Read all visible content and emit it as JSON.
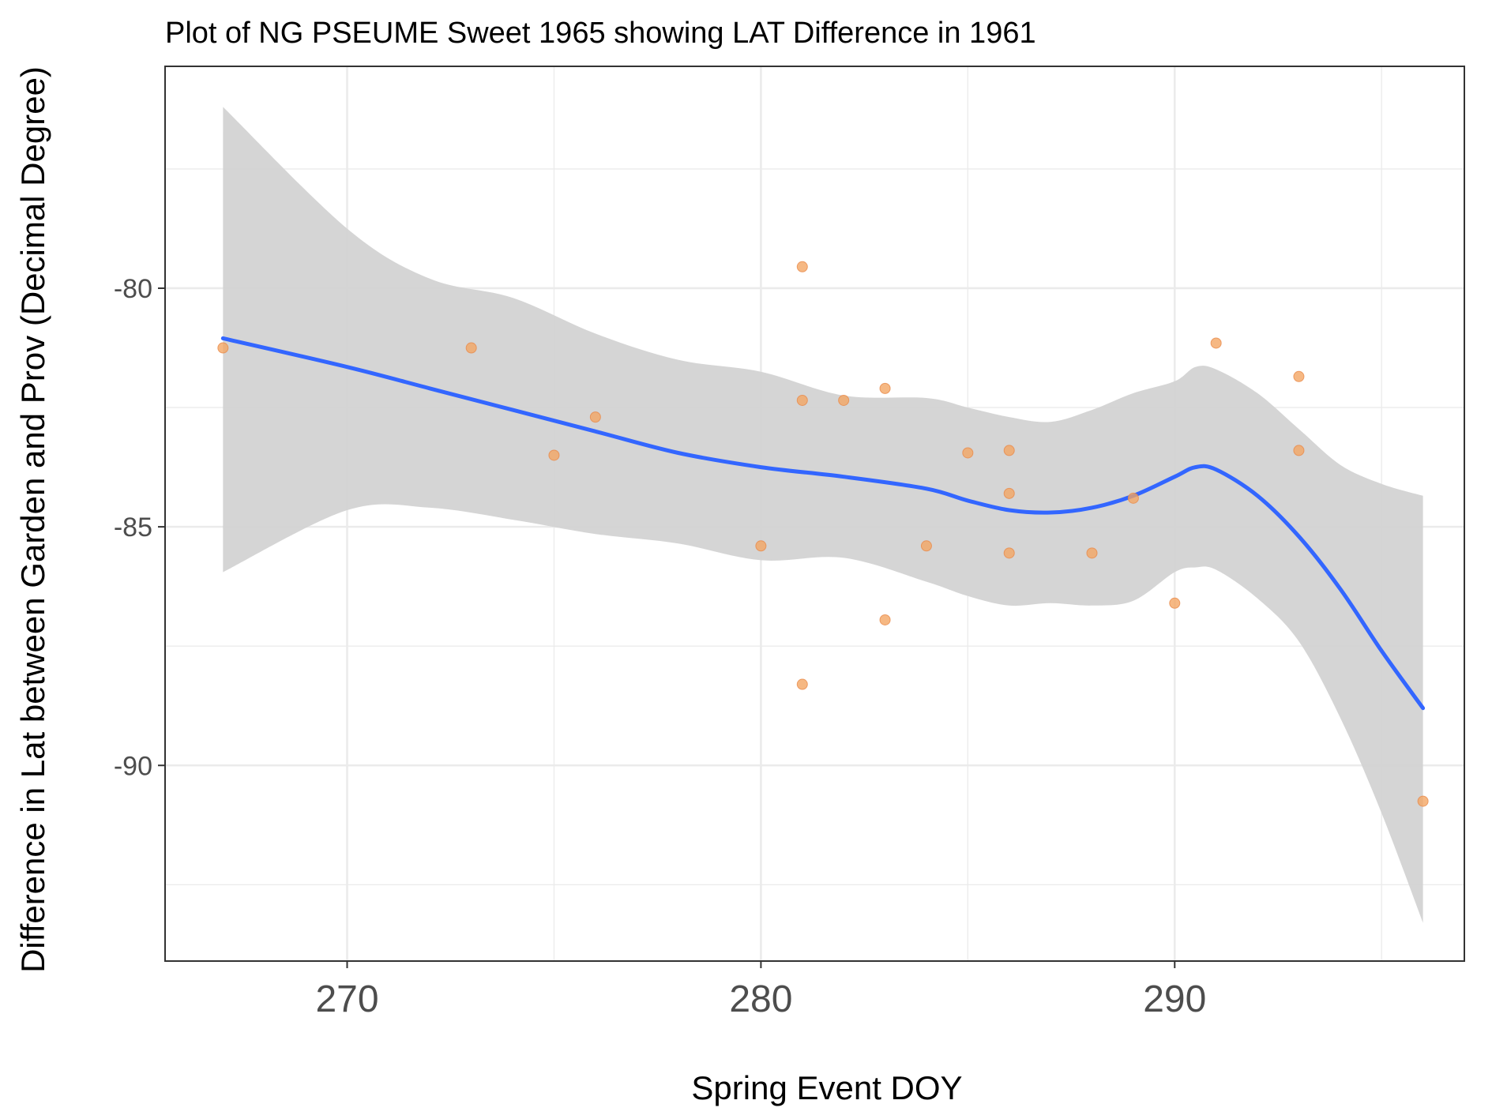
{
  "chart_data": {
    "type": "scatter",
    "title": "Plot of NG PSEUME Sweet 1965 showing LAT Difference in 1961",
    "xlabel": "Spring Event DOY",
    "ylabel": "Difference in Lat between Garden and Prov (Decimal Degree)",
    "xlim": [
      265.6,
      297.0
    ],
    "ylim": [
      -94.1,
      -75.35
    ],
    "x_ticks": [
      270,
      280,
      290
    ],
    "x_tick_labels": [
      "270",
      "280",
      "290"
    ],
    "y_ticks": [
      -90,
      -85,
      -80
    ],
    "y_tick_labels": [
      "-90",
      "-85",
      "-80"
    ],
    "grid": true,
    "legend": "none",
    "colors": {
      "points": "#f4a460",
      "point_stroke": "#e8894a",
      "smooth_line": "#3366ff",
      "confidence_band": "#d3d3d3",
      "panel_border": "#333333",
      "grid": "#ebebeb"
    },
    "points": [
      {
        "x": 267,
        "y": -81.25
      },
      {
        "x": 273,
        "y": -81.25
      },
      {
        "x": 275,
        "y": -83.5
      },
      {
        "x": 276,
        "y": -82.7
      },
      {
        "x": 280,
        "y": -85.4
      },
      {
        "x": 281,
        "y": -79.55
      },
      {
        "x": 281,
        "y": -82.35
      },
      {
        "x": 281,
        "y": -88.3
      },
      {
        "x": 282,
        "y": -82.35
      },
      {
        "x": 283,
        "y": -82.1
      },
      {
        "x": 283,
        "y": -86.95
      },
      {
        "x": 284,
        "y": -85.4
      },
      {
        "x": 285,
        "y": -83.45
      },
      {
        "x": 286,
        "y": -83.4
      },
      {
        "x": 286,
        "y": -84.3
      },
      {
        "x": 286,
        "y": -85.55
      },
      {
        "x": 288,
        "y": -85.55
      },
      {
        "x": 289,
        "y": -84.4
      },
      {
        "x": 290,
        "y": -86.6
      },
      {
        "x": 291,
        "y": -81.15
      },
      {
        "x": 293,
        "y": -81.85
      },
      {
        "x": 293,
        "y": -83.4
      },
      {
        "x": 296,
        "y": -90.75
      }
    ],
    "smooth": {
      "x": [
        267,
        270,
        272,
        274,
        276,
        278,
        280,
        282,
        284,
        285,
        286,
        287,
        288,
        289,
        290,
        290.5,
        291,
        292,
        293,
        294,
        295,
        296
      ],
      "y": [
        -81.05,
        -81.65,
        -82.1,
        -82.55,
        -83.0,
        -83.45,
        -83.75,
        -83.95,
        -84.2,
        -84.45,
        -84.65,
        -84.7,
        -84.6,
        -84.35,
        -83.95,
        -83.75,
        -83.8,
        -84.35,
        -85.2,
        -86.3,
        -87.6,
        -88.8
      ],
      "lower": [
        -85.95,
        -84.65,
        -84.6,
        -84.85,
        -85.15,
        -85.35,
        -85.7,
        -85.65,
        -86.15,
        -86.45,
        -86.65,
        -86.6,
        -86.65,
        -86.55,
        -85.95,
        -85.85,
        -85.9,
        -86.5,
        -87.4,
        -89.0,
        -91.0,
        -93.3
      ],
      "upper": [
        -76.2,
        -78.75,
        -79.8,
        -80.2,
        -80.95,
        -81.5,
        -81.75,
        -82.25,
        -82.3,
        -82.5,
        -82.7,
        -82.8,
        -82.55,
        -82.2,
        -81.95,
        -81.65,
        -81.7,
        -82.2,
        -82.95,
        -83.7,
        -84.1,
        -84.35
      ]
    }
  }
}
